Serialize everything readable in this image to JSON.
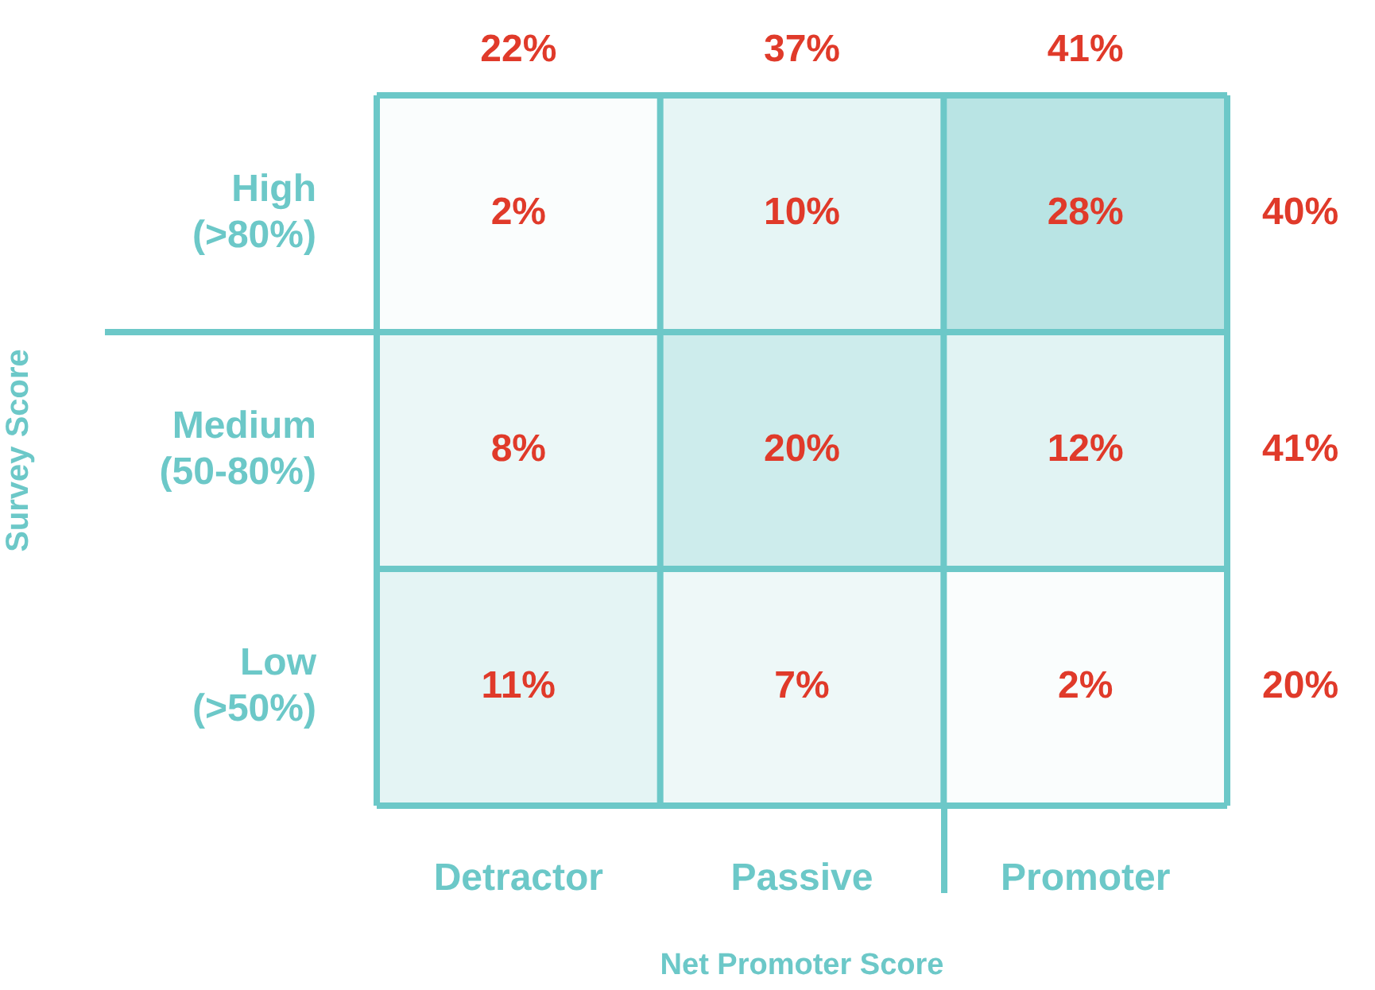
{
  "chart_data": {
    "type": "heatmap",
    "xlabel": "Net Promoter Score",
    "ylabel": "Survey Score",
    "categories": [
      "Detractor",
      "Passive",
      "Promoter"
    ],
    "y_categories": [
      "High (>80%)",
      "Medium (50-80%)",
      "Low (>50%)"
    ],
    "y2_categories": [
      "40%",
      "41%",
      "20%"
    ],
    "cells": [
      [
        2,
        10,
        28
      ],
      [
        8,
        20,
        12
      ],
      [
        11,
        7,
        2
      ]
    ],
    "cell_labels": [
      [
        "2%",
        "10%",
        "28%"
      ],
      [
        "8%",
        "20%",
        "12%"
      ],
      [
        "11%",
        "7%",
        "2%"
      ]
    ],
    "color": "#b9e4e4",
    "grid": true,
    "annotations": [
      "22%",
      "37%",
      "41%"
    ]
  }
}
